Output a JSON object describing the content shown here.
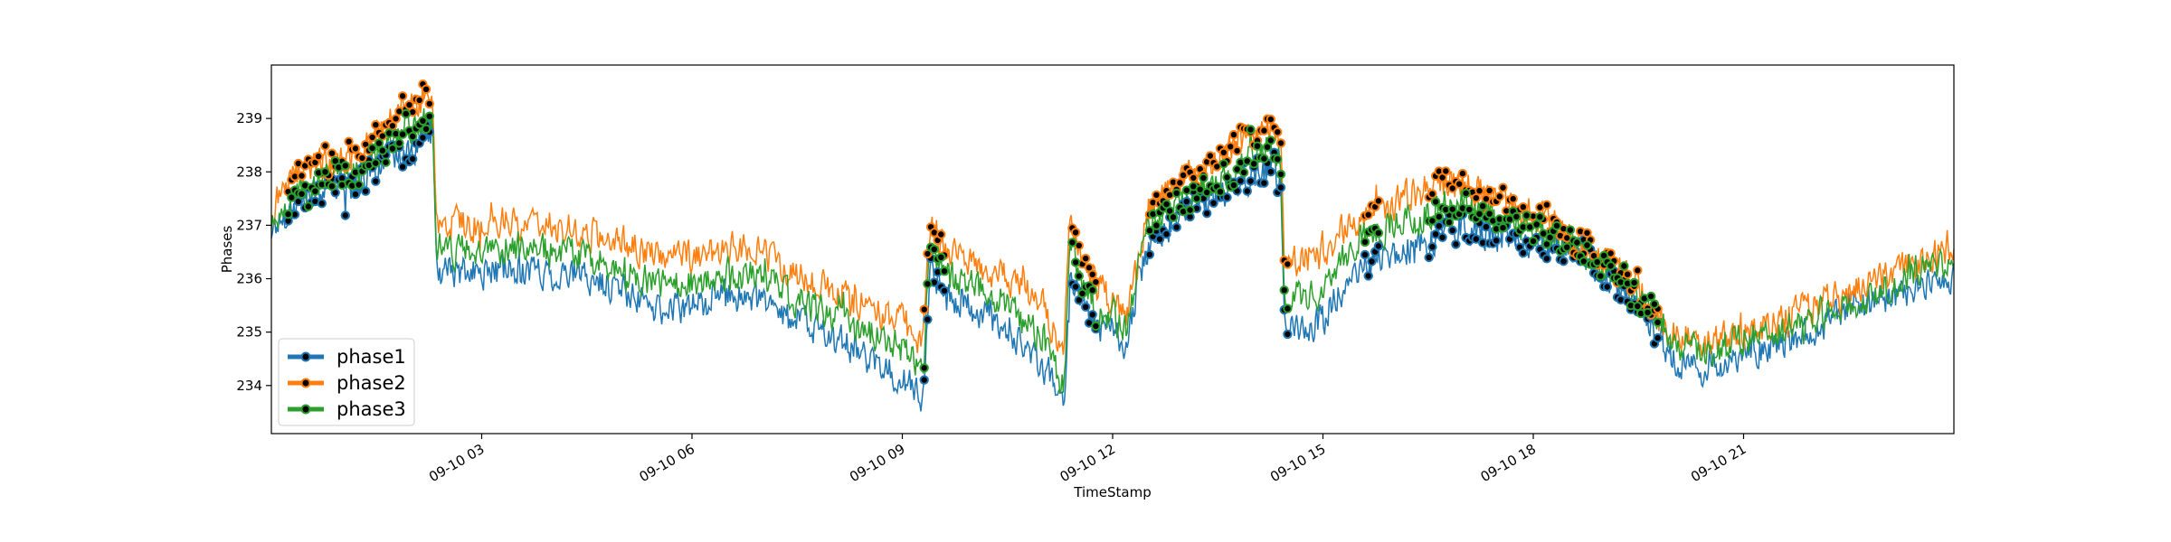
{
  "chart_data": {
    "type": "line",
    "title": "",
    "xlabel": "TimeStamp",
    "ylabel": "Phases",
    "x_unit": "hours since 2020-09-10 00:00",
    "xlim": [
      0.0,
      24.0
    ],
    "ylim": [
      233.1,
      240.0
    ],
    "x_ticks": [
      {
        "value": 3,
        "label": "09-10 03"
      },
      {
        "value": 6,
        "label": "09-10 06"
      },
      {
        "value": 9,
        "label": "09-10 09"
      },
      {
        "value": 12,
        "label": "09-10 12"
      },
      {
        "value": 15,
        "label": "09-10 15"
      },
      {
        "value": 18,
        "label": "09-10 18"
      },
      {
        "value": 21,
        "label": "09-10 21"
      }
    ],
    "y_ticks": [
      234,
      235,
      236,
      237,
      238,
      239
    ],
    "x": [
      0.0,
      0.2,
      0.4,
      0.6,
      0.8,
      1.0,
      1.2,
      1.4,
      1.6,
      1.8,
      2.0,
      2.2,
      2.3,
      2.35,
      2.5,
      3.0,
      3.5,
      4.0,
      4.5,
      5.0,
      5.5,
      6.0,
      6.5,
      7.0,
      7.5,
      8.0,
      8.5,
      9.0,
      9.3,
      9.4,
      9.45,
      9.6,
      9.8,
      10.0,
      10.5,
      11.0,
      11.3,
      11.4,
      11.45,
      11.6,
      11.8,
      12.0,
      12.2,
      12.4,
      12.5,
      12.8,
      13.0,
      13.5,
      14.0,
      14.3,
      14.4,
      14.45,
      14.6,
      15.0,
      15.4,
      15.8,
      16.0,
      16.5,
      17.0,
      17.5,
      18.0,
      18.5,
      19.0,
      19.5,
      19.8,
      20.0,
      20.5,
      21.0,
      21.5,
      22.0,
      22.5,
      23.0,
      23.5,
      24.0
    ],
    "series": [
      {
        "name": "phase1",
        "color": "#1f77b4",
        "values": [
          236.9,
          237.2,
          237.5,
          237.6,
          237.7,
          237.7,
          237.8,
          238.0,
          238.1,
          238.3,
          238.4,
          238.6,
          238.8,
          236.2,
          236.1,
          236.1,
          236.2,
          236.1,
          236.0,
          235.8,
          235.4,
          235.5,
          235.7,
          235.6,
          235.2,
          234.9,
          234.5,
          234.1,
          233.8,
          236.5,
          236.2,
          235.6,
          235.6,
          235.4,
          235.0,
          234.4,
          233.6,
          236.3,
          236.0,
          235.5,
          235.1,
          235.0,
          234.8,
          236.2,
          236.6,
          237.0,
          237.2,
          237.6,
          237.9,
          238.1,
          237.7,
          235.0,
          235.1,
          235.2,
          236.0,
          236.4,
          236.5,
          236.7,
          237.0,
          236.8,
          236.7,
          236.6,
          236.1,
          235.5,
          234.9,
          234.5,
          234.2,
          234.6,
          234.8,
          235.0,
          235.4,
          235.6,
          235.8,
          236.1
        ]
      },
      {
        "name": "phase2",
        "color": "#ff7f0e",
        "values": [
          237.3,
          237.7,
          238.0,
          238.1,
          238.2,
          238.2,
          238.4,
          238.7,
          238.8,
          239.1,
          239.3,
          239.4,
          239.5,
          237.1,
          237.0,
          237.0,
          237.1,
          237.0,
          236.9,
          236.7,
          236.4,
          236.4,
          236.6,
          236.5,
          236.1,
          235.8,
          235.5,
          235.2,
          234.8,
          237.2,
          237.0,
          236.5,
          236.4,
          236.3,
          236.0,
          235.5,
          234.6,
          237.1,
          236.8,
          236.2,
          235.8,
          235.6,
          235.3,
          236.5,
          237.3,
          237.6,
          237.8,
          238.3,
          238.7,
          238.9,
          238.5,
          236.2,
          236.3,
          236.5,
          237.1,
          237.3,
          237.4,
          237.7,
          237.8,
          237.4,
          237.2,
          236.8,
          236.4,
          235.9,
          235.2,
          235.0,
          234.8,
          235.0,
          235.2,
          235.5,
          235.7,
          236.1,
          236.3,
          236.6
        ]
      },
      {
        "name": "phase3",
        "color": "#2ca02c",
        "values": [
          237.0,
          237.3,
          237.6,
          237.8,
          237.9,
          237.9,
          238.1,
          238.3,
          238.4,
          238.7,
          238.8,
          238.9,
          239.0,
          236.6,
          236.5,
          236.5,
          236.6,
          236.5,
          236.4,
          236.2,
          235.9,
          235.9,
          236.1,
          236.0,
          235.6,
          235.3,
          235.0,
          234.7,
          234.3,
          236.8,
          236.6,
          236.0,
          236.0,
          235.9,
          235.5,
          234.9,
          234.0,
          236.7,
          236.4,
          235.8,
          235.4,
          235.3,
          235.0,
          236.3,
          236.9,
          237.3,
          237.4,
          237.9,
          238.3,
          238.5,
          238.1,
          235.7,
          235.7,
          235.8,
          236.6,
          236.9,
          237.0,
          237.2,
          237.5,
          237.1,
          236.9,
          236.7,
          236.3,
          235.7,
          235.1,
          234.8,
          234.6,
          234.9,
          235.0,
          235.3,
          235.5,
          235.8,
          236.1,
          236.4
        ]
      }
    ],
    "marker_ranges": [
      [
        0.2,
        2.3
      ],
      [
        9.3,
        9.6
      ],
      [
        11.4,
        11.8
      ],
      [
        12.5,
        14.5
      ],
      [
        15.6,
        15.8
      ],
      [
        16.5,
        19.8
      ]
    ],
    "legend_position": "lower-left",
    "grid": false
  }
}
